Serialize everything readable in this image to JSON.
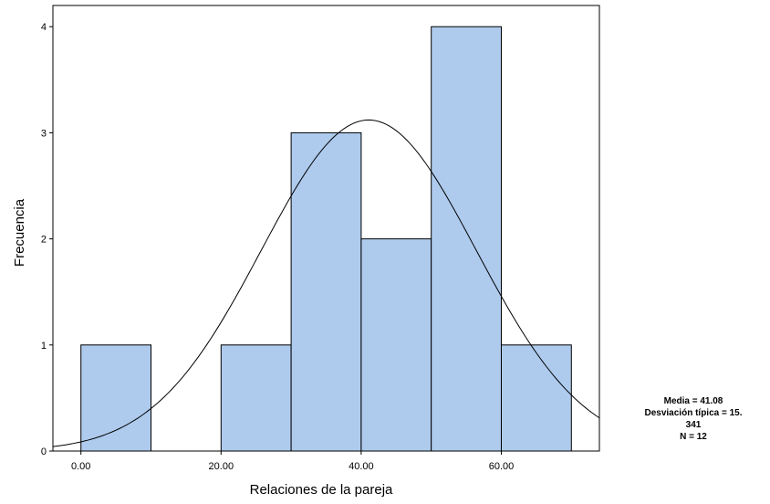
{
  "chart_data": {
    "type": "bar",
    "subtype": "histogram",
    "xlabel": "Relaciones de la pareja",
    "ylabel": "Frecuencia",
    "xlim": [
      -4,
      74
    ],
    "ylim": [
      0,
      4.2
    ],
    "x_ticks": [
      0,
      20,
      40,
      60
    ],
    "x_tick_labels": [
      "0.00",
      "20.00",
      "40.00",
      "60.00"
    ],
    "y_ticks": [
      0,
      1,
      2,
      3,
      4
    ],
    "y_tick_labels": [
      "0",
      "1",
      "2",
      "3",
      "4"
    ],
    "bins": [
      {
        "start": 0,
        "end": 10,
        "value": 1
      },
      {
        "start": 10,
        "end": 20,
        "value": 0
      },
      {
        "start": 20,
        "end": 30,
        "value": 1
      },
      {
        "start": 30,
        "end": 40,
        "value": 3
      },
      {
        "start": 40,
        "end": 50,
        "value": 2
      },
      {
        "start": 50,
        "end": 60,
        "value": 4
      },
      {
        "start": 60,
        "end": 70,
        "value": 1
      }
    ],
    "normal_curve": {
      "mean": 41.08,
      "sd": 15.341,
      "n": 12,
      "bin_width": 10
    },
    "bar_color": "#aecbee",
    "grid": false,
    "legend": "none",
    "stats_lines": [
      "Media = 41.08",
      "Desviación típica = 15.",
      "341",
      "N = 12"
    ]
  }
}
